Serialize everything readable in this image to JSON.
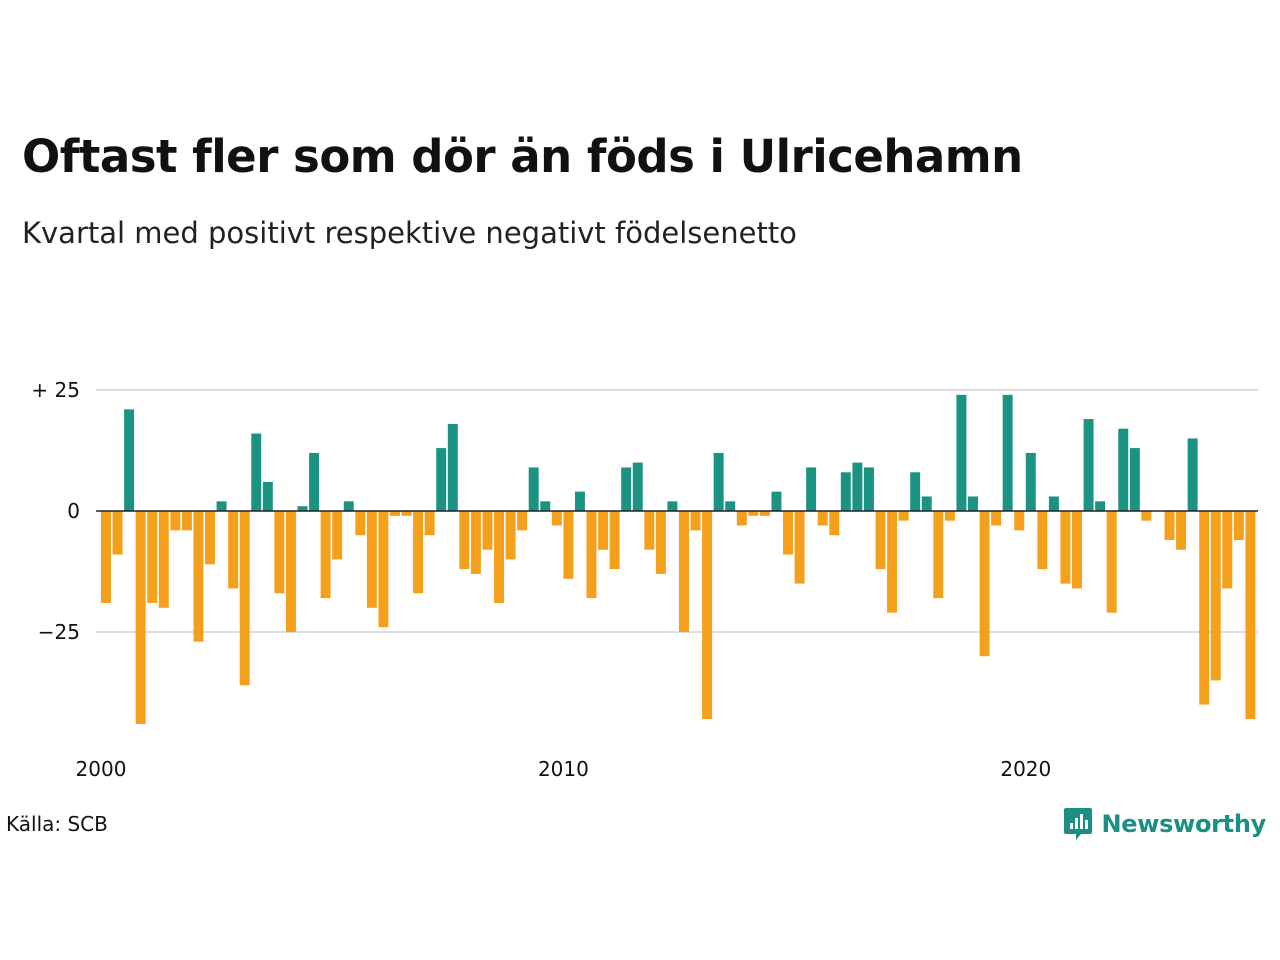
{
  "title": "Oftast fler som dör än föds i Ulricehamn",
  "subtitle": "Kvartal med positivt respektive negativt födelsenetto",
  "source": "Källa: SCB",
  "brand": {
    "name": "Newsworthy",
    "icon": "newsworthy-logo-icon"
  },
  "colors": {
    "positive": "#1a9382",
    "negative": "#f5a01c",
    "grid": "#dddddd",
    "zero": "#222222",
    "brand": "#1b8f84"
  },
  "chart_data": {
    "type": "bar",
    "title": "Oftast fler som dör än föds i Ulricehamn",
    "subtitle": "Kvartal med positivt respektive negativt födelsenetto",
    "xlabel": "",
    "ylabel": "",
    "x_ticks": [
      {
        "value": 2000,
        "label": "2000"
      },
      {
        "value": 2010,
        "label": "2010"
      },
      {
        "value": 2020,
        "label": "2020"
      }
    ],
    "y_ticks": [
      {
        "value": 25,
        "label": "+ 25"
      },
      {
        "value": 0,
        "label": "0"
      },
      {
        "value": -25,
        "label": "−25"
      }
    ],
    "ylim": [
      -45,
      30
    ],
    "grid": true,
    "start": "2000 Q1",
    "categories": [
      "2000 Q1",
      "2000 Q2",
      "2000 Q3",
      "2000 Q4",
      "2001 Q1",
      "2001 Q2",
      "2001 Q3",
      "2001 Q4",
      "2002 Q1",
      "2002 Q2",
      "2002 Q3",
      "2002 Q4",
      "2003 Q1",
      "2003 Q2",
      "2003 Q3",
      "2003 Q4",
      "2004 Q1",
      "2004 Q2",
      "2004 Q3",
      "2004 Q4",
      "2005 Q1",
      "2005 Q2",
      "2005 Q3",
      "2005 Q4",
      "2006 Q1",
      "2006 Q2",
      "2006 Q3",
      "2006 Q4",
      "2007 Q1",
      "2007 Q2",
      "2007 Q3",
      "2007 Q4",
      "2008 Q1",
      "2008 Q2",
      "2008 Q3",
      "2008 Q4",
      "2009 Q1",
      "2009 Q2",
      "2009 Q3",
      "2009 Q4",
      "2010 Q1",
      "2010 Q2",
      "2010 Q3",
      "2010 Q4",
      "2011 Q1",
      "2011 Q2",
      "2011 Q3",
      "2011 Q4",
      "2012 Q1",
      "2012 Q2",
      "2012 Q3",
      "2012 Q4",
      "2013 Q1",
      "2013 Q2",
      "2013 Q3",
      "2013 Q4",
      "2014 Q1",
      "2014 Q2",
      "2014 Q3",
      "2014 Q4",
      "2015 Q1",
      "2015 Q2",
      "2015 Q3",
      "2015 Q4",
      "2016 Q1",
      "2016 Q2",
      "2016 Q3",
      "2016 Q4",
      "2017 Q1",
      "2017 Q2",
      "2017 Q3",
      "2017 Q4",
      "2018 Q1",
      "2018 Q2",
      "2018 Q3",
      "2018 Q4",
      "2019 Q1",
      "2019 Q2",
      "2019 Q3",
      "2019 Q4",
      "2020 Q1",
      "2020 Q2",
      "2020 Q3",
      "2020 Q4",
      "2021 Q1",
      "2021 Q2",
      "2021 Q3",
      "2021 Q4",
      "2022 Q1",
      "2022 Q2",
      "2022 Q3",
      "2022 Q4",
      "2023 Q1",
      "2023 Q2",
      "2023 Q3",
      "2023 Q4",
      "2024 Q1",
      "2024 Q2",
      "2024 Q3",
      "2024 Q4"
    ],
    "values": [
      -19,
      -9,
      21,
      -44,
      -19,
      -20,
      -4,
      -4,
      -27,
      -11,
      2,
      -16,
      -36,
      16,
      6,
      -17,
      -25,
      1,
      12,
      -18,
      -10,
      2,
      -5,
      -20,
      -24,
      -1,
      -1,
      -17,
      -5,
      13,
      18,
      -12,
      -13,
      -8,
      -19,
      -10,
      -4,
      9,
      2,
      -3,
      -14,
      4,
      -18,
      -8,
      -12,
      9,
      10,
      -8,
      -13,
      2,
      -25,
      -4,
      -43,
      12,
      2,
      -3,
      -1,
      -1,
      4,
      -9,
      -15,
      9,
      -3,
      -5,
      8,
      10,
      9,
      -12,
      -21,
      -2,
      8,
      3,
      -18,
      -2,
      24,
      3,
      -30,
      -3,
      24,
      -4,
      12,
      -12,
      3,
      -15,
      -16,
      19,
      2,
      -21,
      17,
      13,
      -2,
      0,
      -6,
      -8,
      15,
      -40,
      -35,
      -16,
      -6,
      -43
    ]
  }
}
